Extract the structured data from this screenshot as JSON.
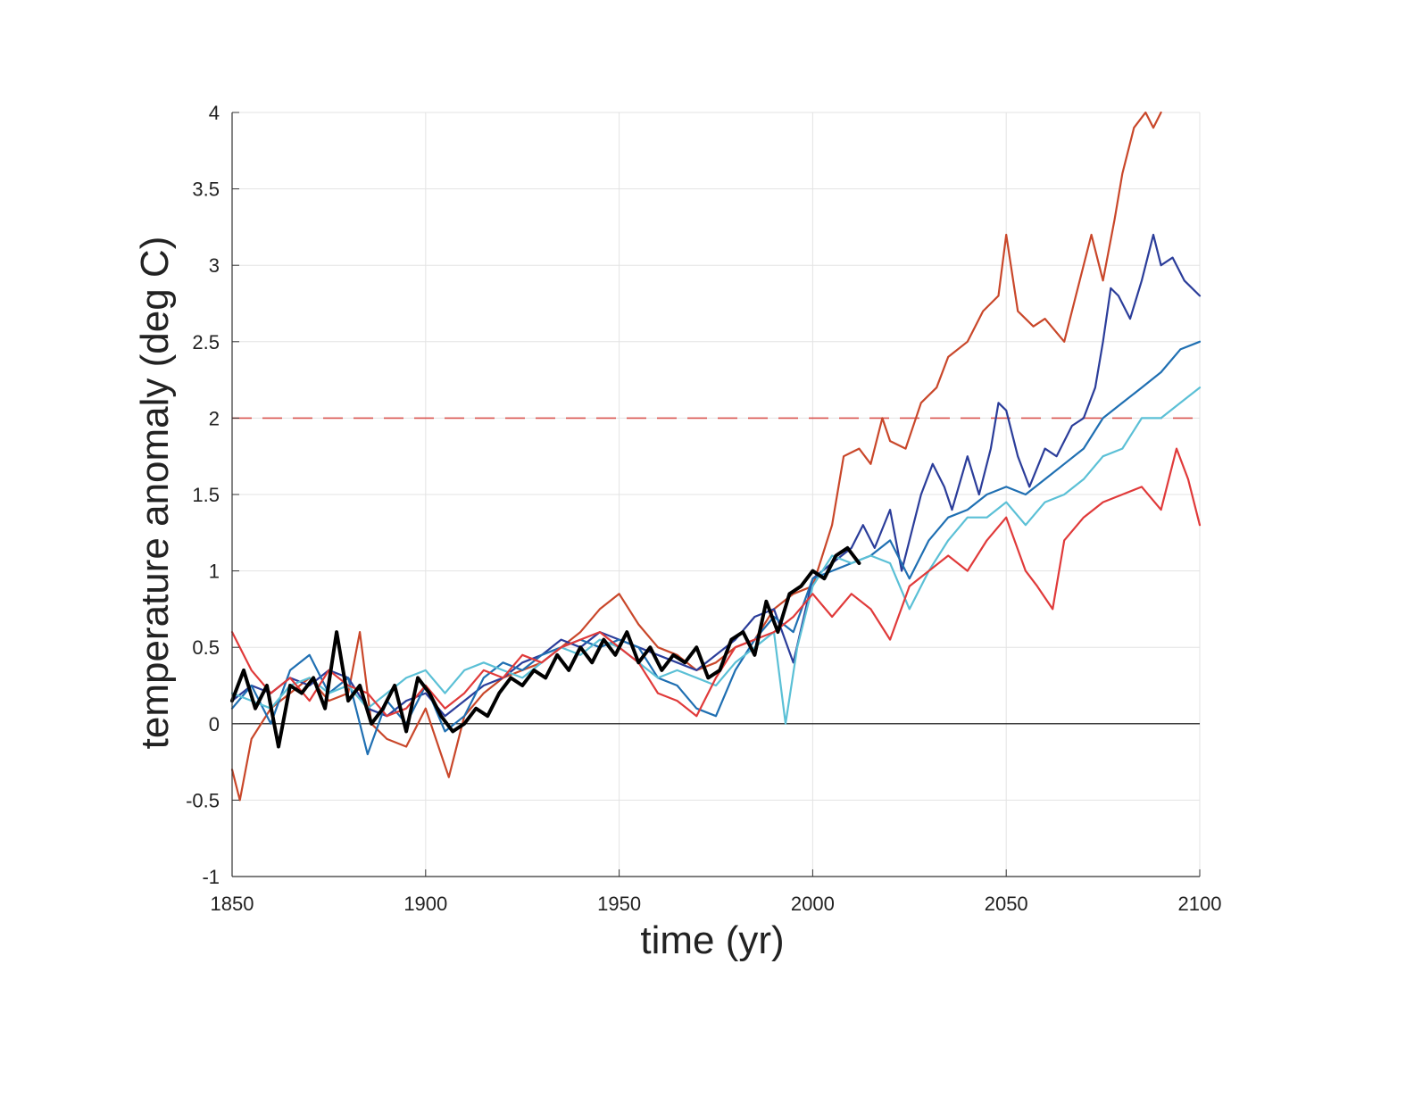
{
  "chart_data": {
    "type": "line",
    "title": "",
    "xlabel": "time (yr)",
    "ylabel": "temperature anomaly (deg C)",
    "xlim": [
      1850,
      2100
    ],
    "ylim": [
      -1,
      4
    ],
    "xticks": [
      1850,
      1900,
      1950,
      2000,
      2050,
      2100
    ],
    "xtick_labels": [
      "1850",
      "1900",
      "1950",
      "2000",
      "2050",
      "2100"
    ],
    "yticks": [
      -1,
      -0.5,
      0,
      0.5,
      1,
      1.5,
      2,
      2.5,
      3,
      3.5,
      4
    ],
    "ytick_labels": [
      "-1",
      "-0.5",
      "0",
      "0.5",
      "1",
      "1.5",
      "2",
      "2.5",
      "3",
      "3.5",
      "4"
    ],
    "grid": true,
    "legend": "none",
    "reference_lines": [
      {
        "y": 0,
        "style": "solid",
        "color": "#000000"
      },
      {
        "y": 2,
        "style": "dashed",
        "color": "#d9534f"
      }
    ],
    "series": [
      {
        "color": "#c9472a",
        "x": [
          1850,
          1852,
          1855,
          1860,
          1865,
          1870,
          1875,
          1880,
          1883,
          1886,
          1890,
          1895,
          1900,
          1904,
          1906,
          1910,
          1915,
          1920,
          1925,
          1930,
          1935,
          1940,
          1945,
          1950,
          1955,
          1960,
          1965,
          1970,
          1975,
          1980,
          1985,
          1990,
          1995,
          2000,
          2005,
          2008,
          2012,
          2015,
          2018,
          2020,
          2024,
          2028,
          2032,
          2035,
          2040,
          2044,
          2048,
          2050,
          2053,
          2057,
          2060,
          2065,
          2068,
          2072,
          2075,
          2078,
          2080,
          2083,
          2086,
          2088,
          2090
        ],
        "y": [
          -0.3,
          -0.5,
          -0.1,
          0.1,
          0.2,
          0.3,
          0.15,
          0.2,
          0.6,
          0.0,
          -0.1,
          -0.15,
          0.1,
          -0.2,
          -0.35,
          0.05,
          0.2,
          0.3,
          0.35,
          0.4,
          0.5,
          0.6,
          0.75,
          0.85,
          0.65,
          0.5,
          0.45,
          0.35,
          0.4,
          0.5,
          0.55,
          0.75,
          0.85,
          0.9,
          1.3,
          1.75,
          1.8,
          1.7,
          2.0,
          1.85,
          1.8,
          2.1,
          2.2,
          2.4,
          2.5,
          2.7,
          2.8,
          3.2,
          2.7,
          2.6,
          2.65,
          2.5,
          2.8,
          3.2,
          2.9,
          3.3,
          3.6,
          3.9,
          4.0,
          3.9,
          4.0
        ]
      },
      {
        "color": "#2b3d9a",
        "x": [
          1850,
          1855,
          1860,
          1865,
          1870,
          1875,
          1880,
          1885,
          1890,
          1895,
          1900,
          1905,
          1910,
          1915,
          1920,
          1925,
          1930,
          1935,
          1940,
          1945,
          1950,
          1955,
          1960,
          1965,
          1970,
          1975,
          1980,
          1985,
          1990,
          1995,
          2000,
          2005,
          2010,
          2013,
          2016,
          2020,
          2023,
          2025,
          2028,
          2031,
          2034,
          2036,
          2040,
          2043,
          2046,
          2048,
          2050,
          2053,
          2056,
          2060,
          2063,
          2067,
          2070,
          2073,
          2075,
          2077,
          2079,
          2082,
          2085,
          2088,
          2090,
          2093,
          2096,
          2100
        ],
        "y": [
          0.15,
          0.25,
          0.2,
          0.3,
          0.25,
          0.35,
          0.3,
          0.1,
          0.05,
          0.15,
          0.2,
          0.05,
          0.15,
          0.25,
          0.3,
          0.4,
          0.45,
          0.55,
          0.5,
          0.6,
          0.55,
          0.5,
          0.45,
          0.4,
          0.35,
          0.45,
          0.55,
          0.7,
          0.75,
          0.4,
          0.95,
          1.05,
          1.15,
          1.3,
          1.15,
          1.4,
          1.0,
          1.2,
          1.5,
          1.7,
          1.55,
          1.4,
          1.75,
          1.5,
          1.8,
          2.1,
          2.05,
          1.75,
          1.55,
          1.8,
          1.75,
          1.95,
          2.0,
          2.2,
          2.5,
          2.85,
          2.8,
          2.65,
          2.9,
          3.2,
          3.0,
          3.05,
          2.9,
          2.8
        ]
      },
      {
        "color": "#1f6fb2",
        "x": [
          1850,
          1855,
          1860,
          1865,
          1870,
          1875,
          1880,
          1885,
          1890,
          1895,
          1900,
          1905,
          1910,
          1915,
          1920,
          1925,
          1930,
          1935,
          1940,
          1945,
          1950,
          1955,
          1960,
          1965,
          1970,
          1975,
          1980,
          1985,
          1990,
          1995,
          2000,
          2005,
          2010,
          2015,
          2020,
          2025,
          2030,
          2035,
          2040,
          2045,
          2050,
          2055,
          2060,
          2065,
          2070,
          2075,
          2080,
          2085,
          2090,
          2095,
          2100
        ],
        "y": [
          0.1,
          0.25,
          0.0,
          0.35,
          0.45,
          0.2,
          0.3,
          -0.2,
          0.15,
          0.0,
          0.25,
          -0.05,
          0.05,
          0.3,
          0.4,
          0.35,
          0.45,
          0.5,
          0.55,
          0.5,
          0.55,
          0.5,
          0.3,
          0.25,
          0.1,
          0.05,
          0.35,
          0.55,
          0.7,
          0.6,
          0.95,
          1.0,
          1.05,
          1.1,
          1.2,
          0.95,
          1.2,
          1.35,
          1.4,
          1.5,
          1.55,
          1.5,
          1.6,
          1.7,
          1.8,
          2.0,
          2.1,
          2.2,
          2.3,
          2.45,
          2.5
        ]
      },
      {
        "color": "#5bc0d6",
        "x": [
          1850,
          1855,
          1860,
          1865,
          1870,
          1875,
          1880,
          1885,
          1890,
          1895,
          1900,
          1905,
          1910,
          1915,
          1920,
          1925,
          1930,
          1935,
          1940,
          1945,
          1950,
          1955,
          1960,
          1965,
          1970,
          1975,
          1980,
          1985,
          1990,
          1993,
          1996,
          2000,
          2005,
          2010,
          2015,
          2020,
          2025,
          2030,
          2035,
          2040,
          2045,
          2050,
          2055,
          2060,
          2065,
          2070,
          2075,
          2080,
          2085,
          2090,
          2095,
          2100
        ],
        "y": [
          0.2,
          0.15,
          0.1,
          0.25,
          0.3,
          0.2,
          0.25,
          0.1,
          0.2,
          0.3,
          0.35,
          0.2,
          0.35,
          0.4,
          0.35,
          0.3,
          0.4,
          0.5,
          0.45,
          0.55,
          0.5,
          0.4,
          0.3,
          0.35,
          0.3,
          0.25,
          0.4,
          0.5,
          0.6,
          0.0,
          0.5,
          0.9,
          1.1,
          1.05,
          1.1,
          1.05,
          0.75,
          1.0,
          1.2,
          1.35,
          1.35,
          1.45,
          1.3,
          1.45,
          1.5,
          1.6,
          1.75,
          1.8,
          2.0,
          2.0,
          2.1,
          2.2
        ]
      },
      {
        "color": "#e03a3a",
        "x": [
          1850,
          1855,
          1860,
          1865,
          1870,
          1875,
          1880,
          1885,
          1890,
          1895,
          1900,
          1905,
          1910,
          1915,
          1920,
          1925,
          1930,
          1935,
          1940,
          1945,
          1950,
          1955,
          1960,
          1965,
          1970,
          1975,
          1980,
          1985,
          1990,
          1995,
          2000,
          2005,
          2010,
          2015,
          2020,
          2025,
          2030,
          2035,
          2040,
          2045,
          2050,
          2055,
          2058,
          2062,
          2065,
          2070,
          2075,
          2080,
          2085,
          2090,
          2094,
          2097,
          2100
        ],
        "y": [
          0.6,
          0.35,
          0.2,
          0.3,
          0.15,
          0.35,
          0.25,
          0.2,
          0.05,
          0.1,
          0.25,
          0.1,
          0.2,
          0.35,
          0.3,
          0.45,
          0.4,
          0.5,
          0.55,
          0.6,
          0.5,
          0.4,
          0.2,
          0.15,
          0.05,
          0.3,
          0.5,
          0.55,
          0.6,
          0.7,
          0.85,
          0.7,
          0.85,
          0.75,
          0.55,
          0.9,
          1.0,
          1.1,
          1.0,
          1.2,
          1.35,
          1.0,
          0.9,
          0.75,
          1.2,
          1.35,
          1.45,
          1.5,
          1.55,
          1.4,
          1.8,
          1.6,
          1.3
        ]
      },
      {
        "color": "#000000",
        "width": 4,
        "x": [
          1850,
          1853,
          1856,
          1859,
          1862,
          1865,
          1868,
          1871,
          1874,
          1877,
          1880,
          1883,
          1886,
          1889,
          1892,
          1895,
          1898,
          1901,
          1904,
          1907,
          1910,
          1913,
          1916,
          1919,
          1922,
          1925,
          1928,
          1931,
          1934,
          1937,
          1940,
          1943,
          1946,
          1949,
          1952,
          1955,
          1958,
          1961,
          1964,
          1967,
          1970,
          1973,
          1976,
          1979,
          1982,
          1985,
          1988,
          1991,
          1994,
          1997,
          2000,
          2003,
          2006,
          2009,
          2012
        ],
        "y": [
          0.15,
          0.35,
          0.1,
          0.25,
          -0.15,
          0.25,
          0.2,
          0.3,
          0.1,
          0.6,
          0.15,
          0.25,
          0.0,
          0.1,
          0.25,
          -0.05,
          0.3,
          0.2,
          0.05,
          -0.05,
          0.0,
          0.1,
          0.05,
          0.2,
          0.3,
          0.25,
          0.35,
          0.3,
          0.45,
          0.35,
          0.5,
          0.4,
          0.55,
          0.45,
          0.6,
          0.4,
          0.5,
          0.35,
          0.45,
          0.4,
          0.5,
          0.3,
          0.35,
          0.55,
          0.6,
          0.45,
          0.8,
          0.6,
          0.85,
          0.9,
          1.0,
          0.95,
          1.1,
          1.15,
          1.05
        ]
      }
    ]
  }
}
